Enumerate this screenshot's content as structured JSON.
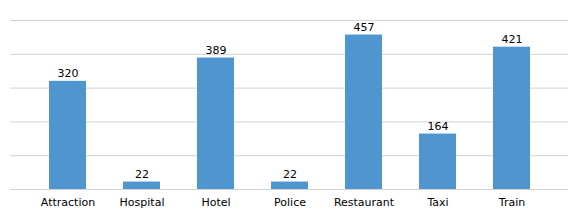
{
  "chart_data": {
    "type": "bar",
    "categories": [
      "Attraction",
      "Hospital",
      "Hotel",
      "Police",
      "Restaurant",
      "Taxi",
      "Train"
    ],
    "values": [
      320,
      22,
      389,
      22,
      457,
      164,
      421
    ],
    "color": "#4F96D0",
    "ylim": [
      0,
      500
    ],
    "yticks": [
      0,
      100,
      200,
      300,
      400,
      500
    ],
    "grid": true,
    "data_labels": true,
    "tick_labels": "x"
  }
}
